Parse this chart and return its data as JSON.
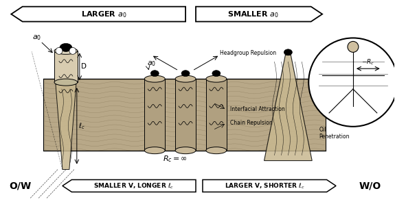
{
  "fig_width": 5.75,
  "fig_height": 2.95,
  "dpi": 100,
  "top_arrow_left_label": "LARGER $a_0$",
  "top_arrow_right_label": "SMALLER $a_0$",
  "bot_arrow_left_label": "SMALLER V, LONGER $\\ell_c$",
  "bot_arrow_right_label": "LARGER V, SHORTER $\\ell_c$",
  "ow_label": "O/W",
  "wo_label": "W/O",
  "rc_label": "$R_c = \\infty$",
  "headgroup_repulsion": "Headgroup Repulsion",
  "interfacial_attraction": "Interfacial Attraction",
  "chain_repulsion": "Chain Repulsion",
  "oil_penetration": "Oil\nPenetration",
  "minus_rc": "$-R_c$",
  "a0_left": "$a_0$",
  "a0_center": "$a_0$",
  "D_label": "D",
  "lc_label": "$\\ell_c$",
  "band_color": "#b8a888",
  "band_dark": "#a09070",
  "bg_color": "#ffffff",
  "black": "#000000",
  "gray_light": "#d8ccb8"
}
